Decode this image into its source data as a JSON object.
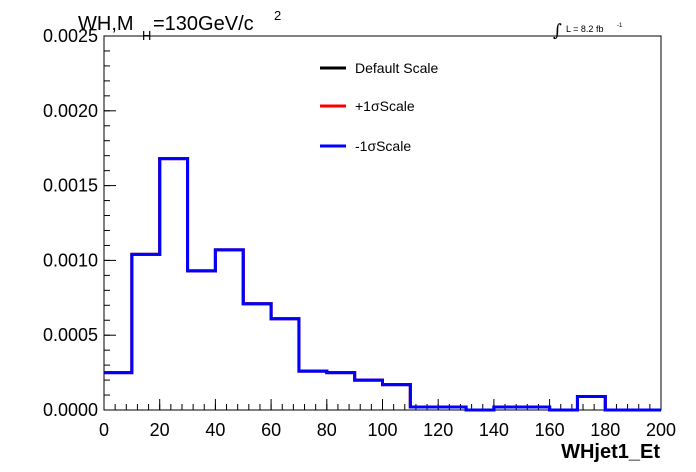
{
  "title": {
    "prefix": "WH,M",
    "subscript": "H",
    "value": "=130GeV/c",
    "superscript": "2"
  },
  "luminosity": {
    "integral": "∫",
    "text": "L = 8.2 fb",
    "superscript": "-1"
  },
  "chart_data": {
    "type": "histogram",
    "xlabel": "WHjet1_Et",
    "ylabel": "",
    "xlim": [
      0,
      200
    ],
    "ylim": [
      0,
      0.0025
    ],
    "x_ticks": [
      "0",
      "20",
      "40",
      "60",
      "80",
      "100",
      "120",
      "140",
      "160",
      "180",
      "200"
    ],
    "y_ticks": [
      "0.0000",
      "0.0005",
      "0.0010",
      "0.0015",
      "0.0020",
      "0.0025"
    ],
    "bin_edges": [
      0,
      10,
      20,
      30,
      40,
      50,
      60,
      70,
      80,
      90,
      100,
      110,
      120,
      130,
      140,
      150,
      160,
      170,
      180,
      190,
      200
    ],
    "series": [
      {
        "name": "Default Scale",
        "color": "#000000",
        "values": [
          0.00025,
          0.00104,
          0.00168,
          0.00093,
          0.00107,
          0.00071,
          0.00061,
          0.00026,
          0.00025,
          0.0002,
          0.00017,
          2e-05,
          2e-05,
          0.0,
          2e-05,
          2e-05,
          0.0,
          9e-05,
          0.0,
          0.0
        ]
      },
      {
        "name": "+1σScale",
        "color": "#ff0000",
        "values": [
          0.00025,
          0.00104,
          0.00168,
          0.00093,
          0.00107,
          0.00071,
          0.00061,
          0.00026,
          0.00025,
          0.0002,
          0.00017,
          2e-05,
          2e-05,
          0.0,
          2e-05,
          2e-05,
          0.0,
          9e-05,
          0.0,
          0.0
        ]
      },
      {
        "name": "-1σScale",
        "color": "#0000ff",
        "values": [
          0.00025,
          0.00104,
          0.00168,
          0.00093,
          0.00107,
          0.00071,
          0.00061,
          0.00026,
          0.00025,
          0.0002,
          0.00017,
          2e-05,
          2e-05,
          0.0,
          2e-05,
          2e-05,
          0.0,
          9e-05,
          0.0,
          0.0
        ]
      }
    ],
    "legend_placement": "top-center"
  }
}
